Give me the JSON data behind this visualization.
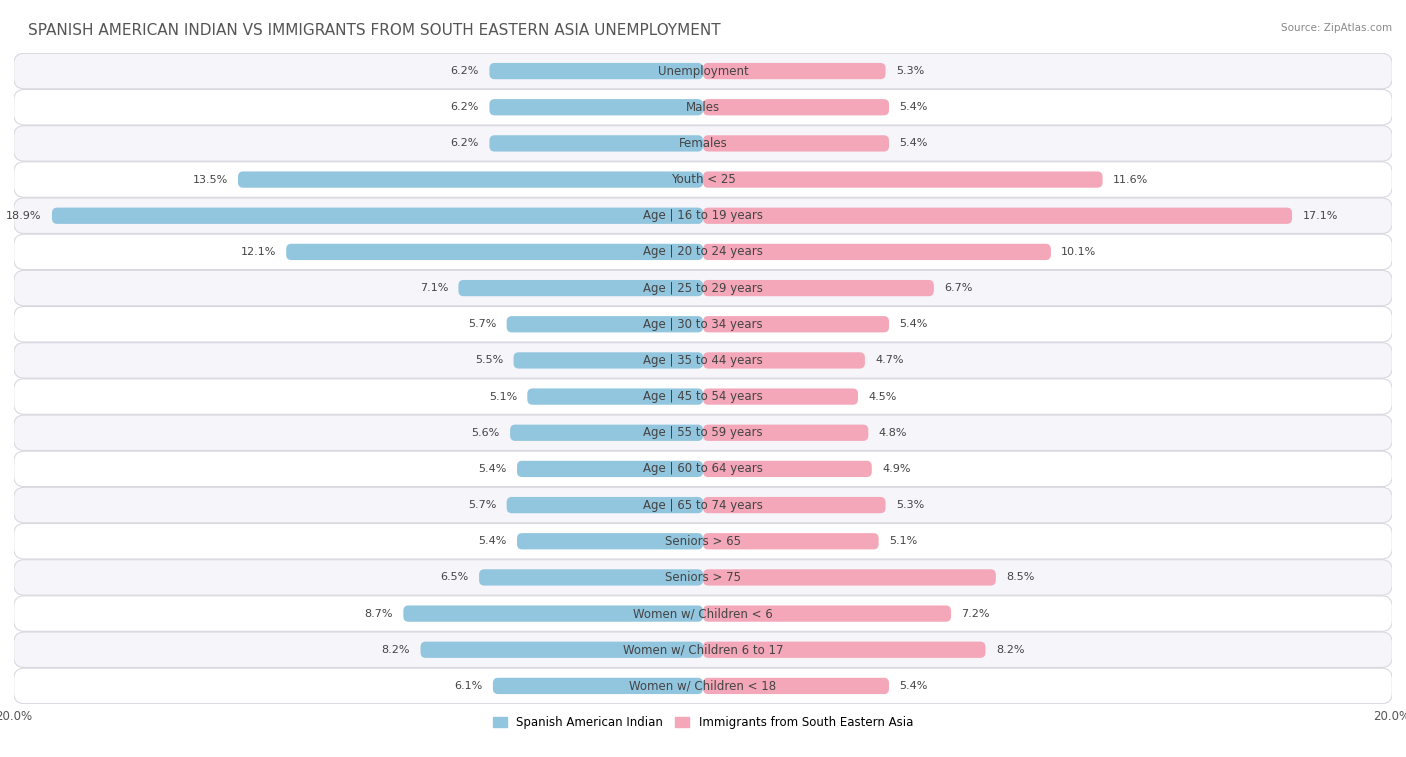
{
  "title": "SPANISH AMERICAN INDIAN VS IMMIGRANTS FROM SOUTH EASTERN ASIA UNEMPLOYMENT",
  "source": "Source: ZipAtlas.com",
  "categories": [
    "Unemployment",
    "Males",
    "Females",
    "Youth < 25",
    "Age | 16 to 19 years",
    "Age | 20 to 24 years",
    "Age | 25 to 29 years",
    "Age | 30 to 34 years",
    "Age | 35 to 44 years",
    "Age | 45 to 54 years",
    "Age | 55 to 59 years",
    "Age | 60 to 64 years",
    "Age | 65 to 74 years",
    "Seniors > 65",
    "Seniors > 75",
    "Women w/ Children < 6",
    "Women w/ Children 6 to 17",
    "Women w/ Children < 18"
  ],
  "left_values": [
    6.2,
    6.2,
    6.2,
    13.5,
    18.9,
    12.1,
    7.1,
    5.7,
    5.5,
    5.1,
    5.6,
    5.4,
    5.7,
    5.4,
    6.5,
    8.7,
    8.2,
    6.1
  ],
  "right_values": [
    5.3,
    5.4,
    5.4,
    11.6,
    17.1,
    10.1,
    6.7,
    5.4,
    4.7,
    4.5,
    4.8,
    4.9,
    5.3,
    5.1,
    8.5,
    7.2,
    8.2,
    5.4
  ],
  "left_color": "#92c5de",
  "right_color": "#f4a7b9",
  "left_label": "Spanish American Indian",
  "right_label": "Immigrants from South Eastern Asia",
  "background_color": "#ffffff",
  "row_color_odd": "#f5f5fa",
  "row_color_even": "#ffffff",
  "row_border_color": "#d8d8e0",
  "axis_max": 20.0,
  "title_fontsize": 11,
  "label_fontsize": 8.5,
  "value_fontsize": 8.0
}
